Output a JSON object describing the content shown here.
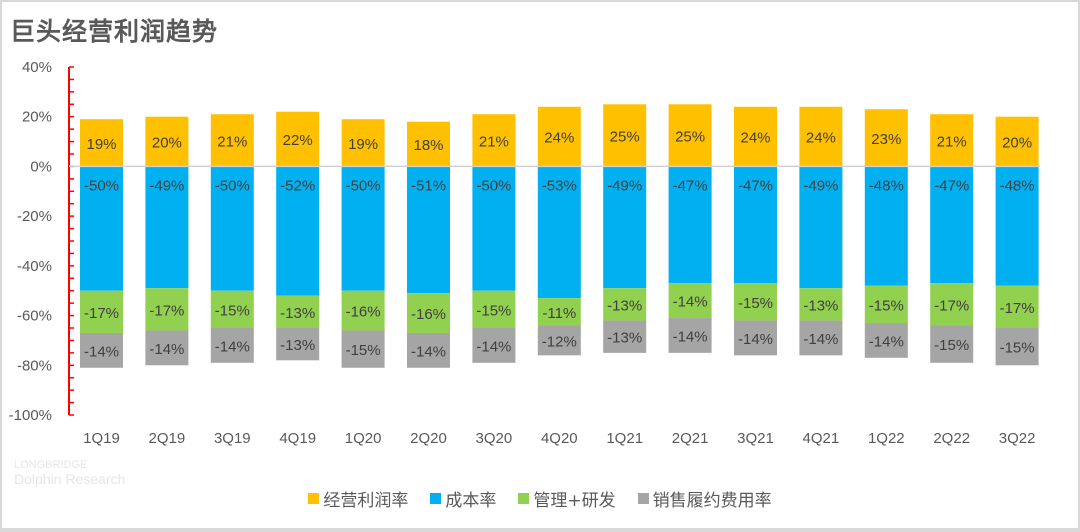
{
  "chart_data": {
    "type": "bar",
    "stacked": true,
    "title": "巨头经营利润趋势",
    "xlabel": "",
    "ylabel": "",
    "ylim": [
      -100,
      40
    ],
    "yticks": [
      40,
      20,
      0,
      -20,
      -40,
      -60,
      -80,
      -100
    ],
    "ytick_labels": [
      "40%",
      "20%",
      "0%",
      "-20%",
      "-40%",
      "-60%",
      "-80%",
      "-100%"
    ],
    "categories": [
      "1Q19",
      "2Q19",
      "3Q19",
      "4Q19",
      "1Q20",
      "2Q20",
      "3Q20",
      "4Q20",
      "1Q21",
      "2Q21",
      "3Q21",
      "4Q21",
      "1Q22",
      "2Q22",
      "3Q22"
    ],
    "series": [
      {
        "name": "经营利润率",
        "color": "#FFC000",
        "values": [
          19,
          20,
          21,
          22,
          19,
          18,
          21,
          24,
          25,
          25,
          24,
          24,
          23,
          21,
          20
        ]
      },
      {
        "name": "成本率",
        "color": "#00B0F0",
        "values": [
          -50,
          -49,
          -50,
          -52,
          -50,
          -51,
          -50,
          -53,
          -49,
          -47,
          -47,
          -49,
          -48,
          -47,
          -48
        ]
      },
      {
        "name": "管理+研发",
        "color": "#92D050",
        "values": [
          -17,
          -17,
          -15,
          -13,
          -16,
          -16,
          -15,
          -11,
          -13,
          -14,
          -15,
          -13,
          -15,
          -17,
          -17
        ]
      },
      {
        "name": "销售履约费用率",
        "color": "#A5A5A5",
        "values": [
          -14,
          -14,
          -14,
          -13,
          -15,
          -14,
          -14,
          -12,
          -13,
          -14,
          -14,
          -14,
          -14,
          -15,
          -15
        ]
      }
    ],
    "legend_position": "bottom",
    "grid": false,
    "axis_color": "#FF0000",
    "watermark": [
      "LONGBRIDGE",
      "Dolphin Research"
    ]
  }
}
